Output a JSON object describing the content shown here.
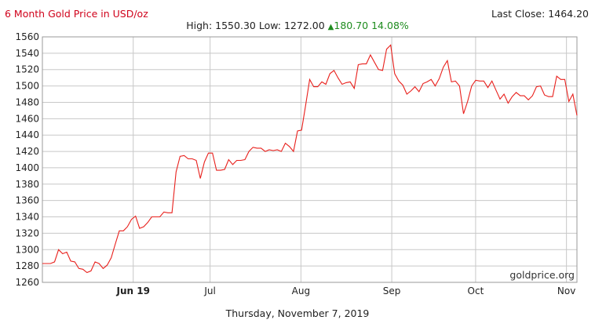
{
  "header": {
    "title": "6 Month Gold Price in USD/oz",
    "last_close": "Last Close: 1464.20",
    "high_label": "High:",
    "high": "1550.30",
    "low_label": "Low:",
    "low": "1272.00",
    "change": "180.70",
    "change_pct": "14.08%",
    "change_color": "#1f8c1f"
  },
  "footer": {
    "date": "Thursday, November 7, 2019"
  },
  "watermark": "goldprice.org",
  "colors": {
    "line": "#e8201c",
    "title": "#d0021b",
    "grid": "#c8c8c8"
  },
  "chart_data": {
    "type": "line",
    "ylim": [
      1260,
      1560
    ],
    "yticks": [
      1260,
      1280,
      1300,
      1320,
      1340,
      1360,
      1380,
      1400,
      1420,
      1440,
      1460,
      1480,
      1500,
      1520,
      1540,
      1560
    ],
    "xticks": [
      {
        "label": "Jun 19",
        "x": 26,
        "bold": true
      },
      {
        "label": "Jul",
        "x": 48,
        "bold": false
      },
      {
        "label": "Aug",
        "x": 74,
        "bold": false
      },
      {
        "label": "Sep",
        "x": 100,
        "bold": false
      },
      {
        "label": "Oct",
        "x": 124,
        "bold": false
      },
      {
        "label": "Nov",
        "x": 150,
        "bold": false
      }
    ],
    "xlim": [
      0,
      153
    ],
    "grid": true,
    "series": [
      {
        "values": [
          1283,
          1283,
          1283,
          1285,
          1300,
          1295,
          1297,
          1286,
          1285,
          1277,
          1276,
          1272,
          1274,
          1285,
          1283,
          1277,
          1281,
          1290,
          1307,
          1323,
          1323,
          1328,
          1337,
          1341,
          1326,
          1328,
          1333,
          1340,
          1340,
          1340,
          1346,
          1345,
          1345,
          1395,
          1414,
          1415,
          1411,
          1411,
          1409,
          1387,
          1407,
          1418,
          1418,
          1397,
          1397,
          1398,
          1410,
          1404,
          1409,
          1409,
          1410,
          1420,
          1425,
          1424,
          1424,
          1420,
          1422,
          1421,
          1422,
          1420,
          1430,
          1426,
          1420,
          1445,
          1446,
          1476,
          1508,
          1499,
          1499,
          1505,
          1502,
          1515,
          1519,
          1510,
          1502,
          1504,
          1505,
          1497,
          1526,
          1527,
          1527,
          1538,
          1529,
          1520,
          1519,
          1545,
          1550,
          1515,
          1506,
          1501,
          1490,
          1494,
          1499,
          1493,
          1503,
          1505,
          1508,
          1500,
          1509,
          1523,
          1531,
          1505,
          1506,
          1500,
          1466,
          1481,
          1500,
          1507,
          1506,
          1506,
          1498,
          1506,
          1495,
          1484,
          1490,
          1479,
          1487,
          1492,
          1488,
          1488,
          1483,
          1488,
          1499,
          1500,
          1489,
          1487,
          1487,
          1512,
          1508,
          1508,
          1481,
          1490,
          1464
        ]
      }
    ]
  }
}
